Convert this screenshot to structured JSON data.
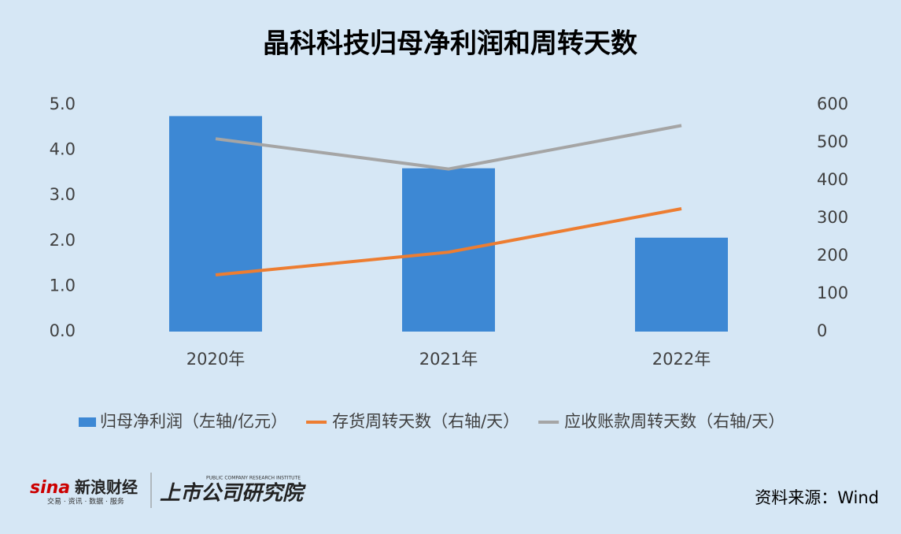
{
  "chart_data": {
    "type": "bar",
    "title": "晶科科技归母净利润和周转天数",
    "categories": [
      "2020年",
      "2021年",
      "2022年"
    ],
    "series": [
      {
        "name": "归母净利润（左轴/亿元）",
        "type": "bar",
        "axis": "y",
        "color": "#3d88d4",
        "values": [
          4.75,
          3.6,
          2.07
        ]
      },
      {
        "name": "存货周转天数（右轴/天）",
        "type": "line",
        "axis": "y2",
        "color": "#ed7d31",
        "values": [
          150,
          210,
          325
        ]
      },
      {
        "name": "应收账款周转天数（右轴/天）",
        "type": "line",
        "axis": "y2",
        "color": "#a5a5a5",
        "values": [
          510,
          430,
          545
        ]
      }
    ],
    "ylim": [
      0,
      5
    ],
    "yticks": [
      {
        "value": 0,
        "label": "0.0"
      },
      {
        "value": 1,
        "label": "1.0"
      },
      {
        "value": 2,
        "label": "2.0"
      },
      {
        "value": 3,
        "label": "3.0"
      },
      {
        "value": 4,
        "label": "4.0"
      },
      {
        "value": 5,
        "label": "5.0"
      }
    ],
    "y2lim": [
      0,
      600
    ],
    "y2ticks": [
      0,
      100,
      200,
      300,
      400,
      500,
      600
    ],
    "legend": "bottom",
    "source": "资料来源：Wind",
    "logos": {
      "sina": "sina",
      "sina_name": "新浪财经",
      "sina_tagline": "交易 · 资讯 · 数据 · 服务",
      "institute": "上市公司研究院",
      "institute_en": "PUBLIC COMPANY RESEARCH INSTITUTE"
    }
  }
}
